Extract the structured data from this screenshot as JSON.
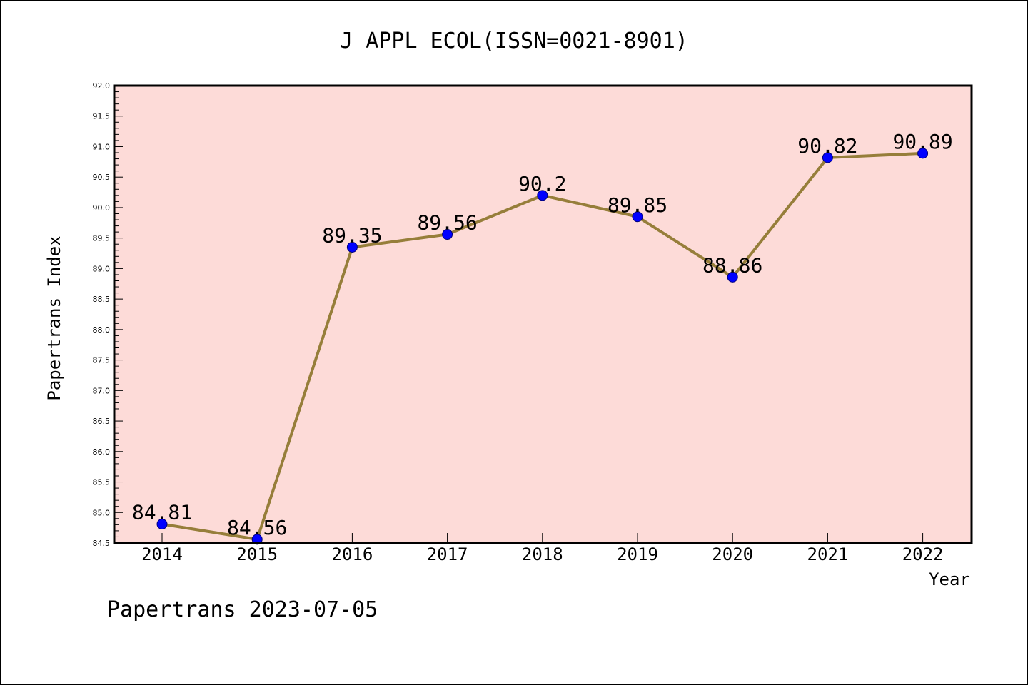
{
  "chart_data": {
    "type": "line",
    "title": "J APPL ECOL(ISSN=0021-8901)",
    "xlabel": "Year",
    "ylabel": "Papertrans Index",
    "categories": [
      "2014",
      "2015",
      "2016",
      "2017",
      "2018",
      "2019",
      "2020",
      "2021",
      "2022"
    ],
    "series": [
      {
        "values": [
          84.81,
          84.56,
          89.35,
          89.56,
          90.2,
          89.85,
          88.86,
          90.82,
          90.89
        ],
        "labels": [
          "84.81",
          "84.56",
          "89.35",
          "89.56",
          "90.2",
          "89.85",
          "88.86",
          "90.82",
          "90.89"
        ]
      }
    ],
    "ylim": [
      84.5,
      92.0
    ],
    "yticks": [
      "84.5",
      "85.0",
      "85.5",
      "86.0",
      "86.5",
      "87.0",
      "87.5",
      "88.0",
      "88.5",
      "89.0",
      "89.5",
      "90.0",
      "90.5",
      "91.0",
      "91.5",
      "92.0"
    ],
    "grid": false,
    "colors": {
      "plot_background": "#fddbd8",
      "line": "#967e3a",
      "marker": "#0000ff"
    }
  },
  "footer": "Papertrans 2023-07-05"
}
